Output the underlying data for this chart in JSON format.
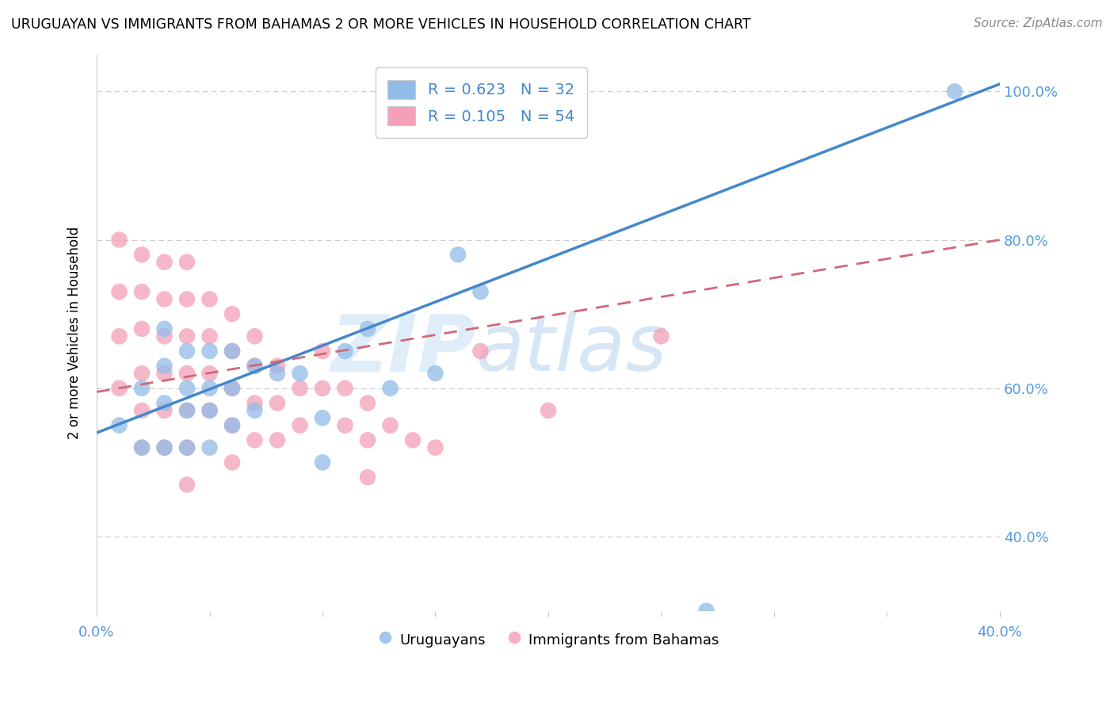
{
  "title": "URUGUAYAN VS IMMIGRANTS FROM BAHAMAS 2 OR MORE VEHICLES IN HOUSEHOLD CORRELATION CHART",
  "source": "Source: ZipAtlas.com",
  "ylabel": "2 or more Vehicles in Household",
  "xmin": 0.0,
  "xmax": 0.4,
  "ymin": 0.3,
  "ymax": 1.05,
  "x_ticks": [
    0.0,
    0.05,
    0.1,
    0.15,
    0.2,
    0.25,
    0.3,
    0.35,
    0.4
  ],
  "x_tick_labels": [
    "0.0%",
    "",
    "",
    "",
    "",
    "",
    "",
    "",
    "40.0%"
  ],
  "y_ticks": [
    0.4,
    0.6,
    0.8,
    1.0
  ],
  "y_tick_labels": [
    "40.0%",
    "60.0%",
    "80.0%",
    "100.0%"
  ],
  "blue_color": "#92bce8",
  "pink_color": "#f4a0b8",
  "blue_line_color": "#4488cc",
  "pink_line_color": "#d06878",
  "watermark_zip": "ZIP",
  "watermark_atlas": "atlas",
  "blue_scatter_x": [
    0.01,
    0.02,
    0.02,
    0.03,
    0.03,
    0.03,
    0.03,
    0.04,
    0.04,
    0.04,
    0.04,
    0.05,
    0.05,
    0.05,
    0.05,
    0.06,
    0.06,
    0.06,
    0.07,
    0.07,
    0.08,
    0.09,
    0.1,
    0.1,
    0.11,
    0.12,
    0.13,
    0.15,
    0.16,
    0.17,
    0.27,
    0.38
  ],
  "blue_scatter_y": [
    0.55,
    0.6,
    0.52,
    0.68,
    0.63,
    0.58,
    0.52,
    0.65,
    0.6,
    0.57,
    0.52,
    0.65,
    0.6,
    0.57,
    0.52,
    0.65,
    0.6,
    0.55,
    0.63,
    0.57,
    0.62,
    0.62,
    0.56,
    0.5,
    0.65,
    0.68,
    0.6,
    0.62,
    0.78,
    0.73,
    0.3,
    1.0
  ],
  "pink_scatter_x": [
    0.01,
    0.01,
    0.01,
    0.01,
    0.02,
    0.02,
    0.02,
    0.02,
    0.02,
    0.02,
    0.03,
    0.03,
    0.03,
    0.03,
    0.03,
    0.03,
    0.04,
    0.04,
    0.04,
    0.04,
    0.04,
    0.04,
    0.04,
    0.05,
    0.05,
    0.05,
    0.05,
    0.06,
    0.06,
    0.06,
    0.06,
    0.06,
    0.07,
    0.07,
    0.07,
    0.07,
    0.08,
    0.08,
    0.08,
    0.09,
    0.09,
    0.1,
    0.1,
    0.11,
    0.11,
    0.12,
    0.12,
    0.12,
    0.13,
    0.14,
    0.15,
    0.17,
    0.2,
    0.25
  ],
  "pink_scatter_y": [
    0.8,
    0.73,
    0.67,
    0.6,
    0.78,
    0.73,
    0.68,
    0.62,
    0.57,
    0.52,
    0.77,
    0.72,
    0.67,
    0.62,
    0.57,
    0.52,
    0.77,
    0.72,
    0.67,
    0.62,
    0.57,
    0.52,
    0.47,
    0.72,
    0.67,
    0.62,
    0.57,
    0.7,
    0.65,
    0.6,
    0.55,
    0.5,
    0.67,
    0.63,
    0.58,
    0.53,
    0.63,
    0.58,
    0.53,
    0.6,
    0.55,
    0.65,
    0.6,
    0.6,
    0.55,
    0.58,
    0.53,
    0.48,
    0.55,
    0.53,
    0.52,
    0.65,
    0.57,
    0.67
  ],
  "blue_line_x0": 0.0,
  "blue_line_y0": 0.54,
  "blue_line_x1": 0.4,
  "blue_line_y1": 1.01,
  "pink_line_x0": 0.0,
  "pink_line_y0": 0.595,
  "pink_line_x1": 0.4,
  "pink_line_y1": 0.8
}
